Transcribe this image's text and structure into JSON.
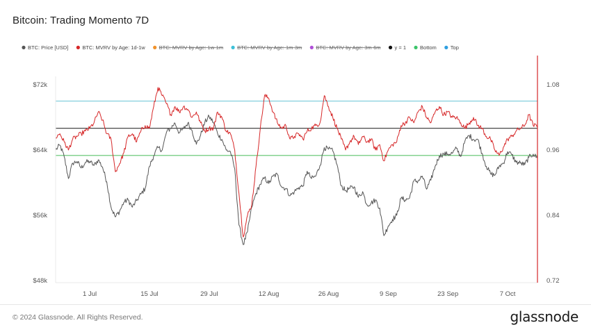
{
  "title": "Bitcoin: Trading Momento 7D",
  "footer": {
    "copyright": "© 2024 Glassnode. All Rights Reserved.",
    "brand": "glassnode"
  },
  "chart_data": {
    "type": "line",
    "title": "Bitcoin: Trading Momento 7D",
    "legend": [
      {
        "label": "BTC: Price [USD]",
        "color": "#555555",
        "strike": false
      },
      {
        "label": "BTC: MVRV by Age: 1d-1w",
        "color": "#d62728",
        "strike": false
      },
      {
        "label": "BTC: MVRV by Age: 1w-1m",
        "color": "#f0922b",
        "strike": true
      },
      {
        "label": "BTC: MVRV by Age: 1m-3m",
        "color": "#3cc0d8",
        "strike": true
      },
      {
        "label": "BTC: MVRV by Age: 3m-6m",
        "color": "#b04fd8",
        "strike": true
      },
      {
        "label": "y = 1",
        "color": "#111111",
        "strike": false
      },
      {
        "label": "Bottom",
        "color": "#3bc46a",
        "strike": false
      },
      {
        "label": "Top",
        "color": "#2f9fe0",
        "strike": false
      }
    ],
    "legend_position": "top-left",
    "x_range": [
      0,
      113
    ],
    "x_unit": "days since 23 Jun 2024",
    "x_ticks": [
      {
        "label": "1 Jul",
        "day": 8
      },
      {
        "label": "15 Jul",
        "day": 22
      },
      {
        "label": "29 Jul",
        "day": 36
      },
      {
        "label": "12 Aug",
        "day": 50
      },
      {
        "label": "26 Aug",
        "day": 64
      },
      {
        "label": "9 Sep",
        "day": 78
      },
      {
        "label": "23 Sep",
        "day": 92
      },
      {
        "label": "7 Oct",
        "day": 106
      }
    ],
    "y_left": {
      "label": "Price [USD]",
      "range": [
        48000,
        72000
      ],
      "ticks": [
        "$48k",
        "$56k",
        "$64k",
        "$72k"
      ],
      "tick_values": [
        48000,
        56000,
        64000,
        72000
      ]
    },
    "y_right": {
      "label": "MVRV",
      "range": [
        0.72,
        1.08
      ],
      "ticks": [
        "0.72",
        "0.84",
        "0.96",
        "1.08"
      ],
      "tick_values": [
        0.72,
        0.84,
        0.96,
        1.08
      ]
    },
    "reference_lines": [
      {
        "name": "Top",
        "value": 1.05,
        "color": "#6cc6d6"
      },
      {
        "name": "y = 1",
        "value": 1.0,
        "color": "#333333"
      },
      {
        "name": "Bottom",
        "value": 0.95,
        "color": "#5cc46a"
      }
    ],
    "series": [
      {
        "name": "BTC: Price [USD]",
        "axis": "left",
        "color": "#555555",
        "points": [
          [
            0,
            64000
          ],
          [
            1,
            64600
          ],
          [
            2,
            63200
          ],
          [
            3,
            60500
          ],
          [
            4,
            62400
          ],
          [
            5,
            62600
          ],
          [
            6,
            61800
          ],
          [
            7,
            62500
          ],
          [
            8,
            62600
          ],
          [
            9,
            62100
          ],
          [
            10,
            62800
          ],
          [
            11,
            61900
          ],
          [
            12,
            60100
          ],
          [
            13,
            57000
          ],
          [
            14,
            55800
          ],
          [
            15,
            56500
          ],
          [
            16,
            57600
          ],
          [
            17,
            57900
          ],
          [
            18,
            57000
          ],
          [
            19,
            57800
          ],
          [
            20,
            58600
          ],
          [
            21,
            59300
          ],
          [
            22,
            62000
          ],
          [
            23,
            63300
          ],
          [
            24,
            64300
          ],
          [
            25,
            64000
          ],
          [
            26,
            66200
          ],
          [
            27,
            66700
          ],
          [
            28,
            67300
          ],
          [
            29,
            66100
          ],
          [
            30,
            66600
          ],
          [
            31,
            67300
          ],
          [
            32,
            66400
          ],
          [
            33,
            64700
          ],
          [
            34,
            65800
          ],
          [
            35,
            67400
          ],
          [
            36,
            68100
          ],
          [
            37,
            67400
          ],
          [
            38,
            66000
          ],
          [
            39,
            65300
          ],
          [
            40,
            64000
          ],
          [
            41,
            63800
          ],
          [
            42,
            61700
          ],
          [
            43,
            54800
          ],
          [
            44,
            52400
          ],
          [
            45,
            54000
          ],
          [
            46,
            57000
          ],
          [
            47,
            58700
          ],
          [
            48,
            59800
          ],
          [
            49,
            60600
          ],
          [
            50,
            59900
          ],
          [
            51,
            60800
          ],
          [
            52,
            61000
          ],
          [
            53,
            59500
          ],
          [
            54,
            59300
          ],
          [
            55,
            58400
          ],
          [
            56,
            58900
          ],
          [
            57,
            59400
          ],
          [
            58,
            59600
          ],
          [
            59,
            61400
          ],
          [
            60,
            60500
          ],
          [
            61,
            60800
          ],
          [
            62,
            62100
          ],
          [
            63,
            64300
          ],
          [
            64,
            64100
          ],
          [
            65,
            63900
          ],
          [
            66,
            62200
          ],
          [
            67,
            59600
          ],
          [
            68,
            59000
          ],
          [
            69,
            59300
          ],
          [
            70,
            59500
          ],
          [
            71,
            58200
          ],
          [
            72,
            58900
          ],
          [
            73,
            57300
          ],
          [
            74,
            57500
          ],
          [
            75,
            57900
          ],
          [
            76,
            56900
          ],
          [
            77,
            53500
          ],
          [
            78,
            54700
          ],
          [
            79,
            55500
          ],
          [
            80,
            56000
          ],
          [
            81,
            58100
          ],
          [
            82,
            57900
          ],
          [
            83,
            58100
          ],
          [
            84,
            60200
          ],
          [
            85,
            60200
          ],
          [
            86,
            60800
          ],
          [
            87,
            59200
          ],
          [
            88,
            60300
          ],
          [
            89,
            62000
          ],
          [
            90,
            63300
          ],
          [
            91,
            63500
          ],
          [
            92,
            63500
          ],
          [
            93,
            63600
          ],
          [
            94,
            64200
          ],
          [
            95,
            63200
          ],
          [
            96,
            65100
          ],
          [
            97,
            65800
          ],
          [
            98,
            65300
          ],
          [
            99,
            65300
          ],
          [
            100,
            63600
          ],
          [
            101,
            62000
          ],
          [
            102,
            61100
          ],
          [
            103,
            60900
          ],
          [
            104,
            62000
          ],
          [
            105,
            62400
          ],
          [
            106,
            63800
          ],
          [
            107,
            63400
          ],
          [
            108,
            62500
          ],
          [
            109,
            62400
          ],
          [
            110,
            62200
          ],
          [
            111,
            63100
          ],
          [
            112,
            63500
          ],
          [
            113,
            63000
          ]
        ]
      },
      {
        "name": "BTC: MVRV by Age: 1d-1w",
        "axis": "right",
        "color": "#d62728",
        "points": [
          [
            0,
            0.983
          ],
          [
            1,
            0.99
          ],
          [
            2,
            0.975
          ],
          [
            3,
            0.96
          ],
          [
            4,
            0.98
          ],
          [
            5,
            0.985
          ],
          [
            6,
            0.99
          ],
          [
            7,
            0.995
          ],
          [
            8,
            1.0
          ],
          [
            9,
            1.01
          ],
          [
            10,
            1.03
          ],
          [
            11,
            1.015
          ],
          [
            12,
            0.99
          ],
          [
            13,
            0.98
          ],
          [
            14,
            0.92
          ],
          [
            15,
            0.935
          ],
          [
            16,
            0.955
          ],
          [
            17,
            0.985
          ],
          [
            18,
            0.99
          ],
          [
            19,
            0.975
          ],
          [
            20,
            0.995
          ],
          [
            21,
            1.005
          ],
          [
            22,
            1.0
          ],
          [
            23,
            1.04
          ],
          [
            24,
            1.075
          ],
          [
            25,
            1.06
          ],
          [
            26,
            1.045
          ],
          [
            27,
            1.025
          ],
          [
            28,
            1.04
          ],
          [
            29,
            1.03
          ],
          [
            30,
            1.04
          ],
          [
            31,
            1.035
          ],
          [
            32,
            1.02
          ],
          [
            33,
            1.03
          ],
          [
            34,
            1.01
          ],
          [
            35,
            0.995
          ],
          [
            36,
            1.0
          ],
          [
            37,
            1.0
          ],
          [
            38,
            1.03
          ],
          [
            39,
            1.02
          ],
          [
            40,
            0.995
          ],
          [
            41,
            0.99
          ],
          [
            42,
            0.96
          ],
          [
            43,
            0.88
          ],
          [
            44,
            0.8
          ],
          [
            45,
            0.84
          ],
          [
            46,
            0.86
          ],
          [
            47,
            0.93
          ],
          [
            48,
            1.0
          ],
          [
            49,
            1.06
          ],
          [
            50,
            1.055
          ],
          [
            51,
            1.03
          ],
          [
            52,
            1.01
          ],
          [
            53,
            1.0
          ],
          [
            54,
            1.005
          ],
          [
            55,
            0.98
          ],
          [
            56,
            0.985
          ],
          [
            57,
            0.99
          ],
          [
            58,
            0.98
          ],
          [
            59,
            0.995
          ],
          [
            60,
            1.0
          ],
          [
            61,
            1.005
          ],
          [
            62,
            1.01
          ],
          [
            63,
            1.06
          ],
          [
            64,
            1.04
          ],
          [
            65,
            1.02
          ],
          [
            66,
            1.0
          ],
          [
            67,
            0.98
          ],
          [
            68,
            0.96
          ],
          [
            69,
            0.975
          ],
          [
            70,
            0.985
          ],
          [
            71,
            0.97
          ],
          [
            72,
            0.985
          ],
          [
            73,
            0.975
          ],
          [
            74,
            0.98
          ],
          [
            75,
            0.96
          ],
          [
            76,
            0.97
          ],
          [
            77,
            0.94
          ],
          [
            78,
            0.96
          ],
          [
            79,
            0.97
          ],
          [
            80,
            0.975
          ],
          [
            81,
            1.005
          ],
          [
            82,
            1.01
          ],
          [
            83,
            1.02
          ],
          [
            84,
            1.01
          ],
          [
            85,
            1.03
          ],
          [
            86,
            1.04
          ],
          [
            87,
            1.02
          ],
          [
            88,
            1.01
          ],
          [
            89,
            1.03
          ],
          [
            90,
            1.04
          ],
          [
            91,
            1.025
          ],
          [
            92,
            1.03
          ],
          [
            93,
            1.02
          ],
          [
            94,
            1.02
          ],
          [
            95,
            1.01
          ],
          [
            96,
            1.0
          ],
          [
            97,
            1.01
          ],
          [
            98,
            1.02
          ],
          [
            99,
            1.005
          ],
          [
            100,
            1.0
          ],
          [
            101,
            0.985
          ],
          [
            102,
            0.98
          ],
          [
            103,
            0.96
          ],
          [
            104,
            0.95
          ],
          [
            105,
            0.965
          ],
          [
            106,
            0.98
          ],
          [
            107,
            0.985
          ],
          [
            108,
            0.995
          ],
          [
            109,
            1.0
          ],
          [
            110,
            1.005
          ],
          [
            111,
            1.025
          ],
          [
            112,
            1.005
          ],
          [
            113,
            1.005
          ]
        ]
      }
    ]
  }
}
